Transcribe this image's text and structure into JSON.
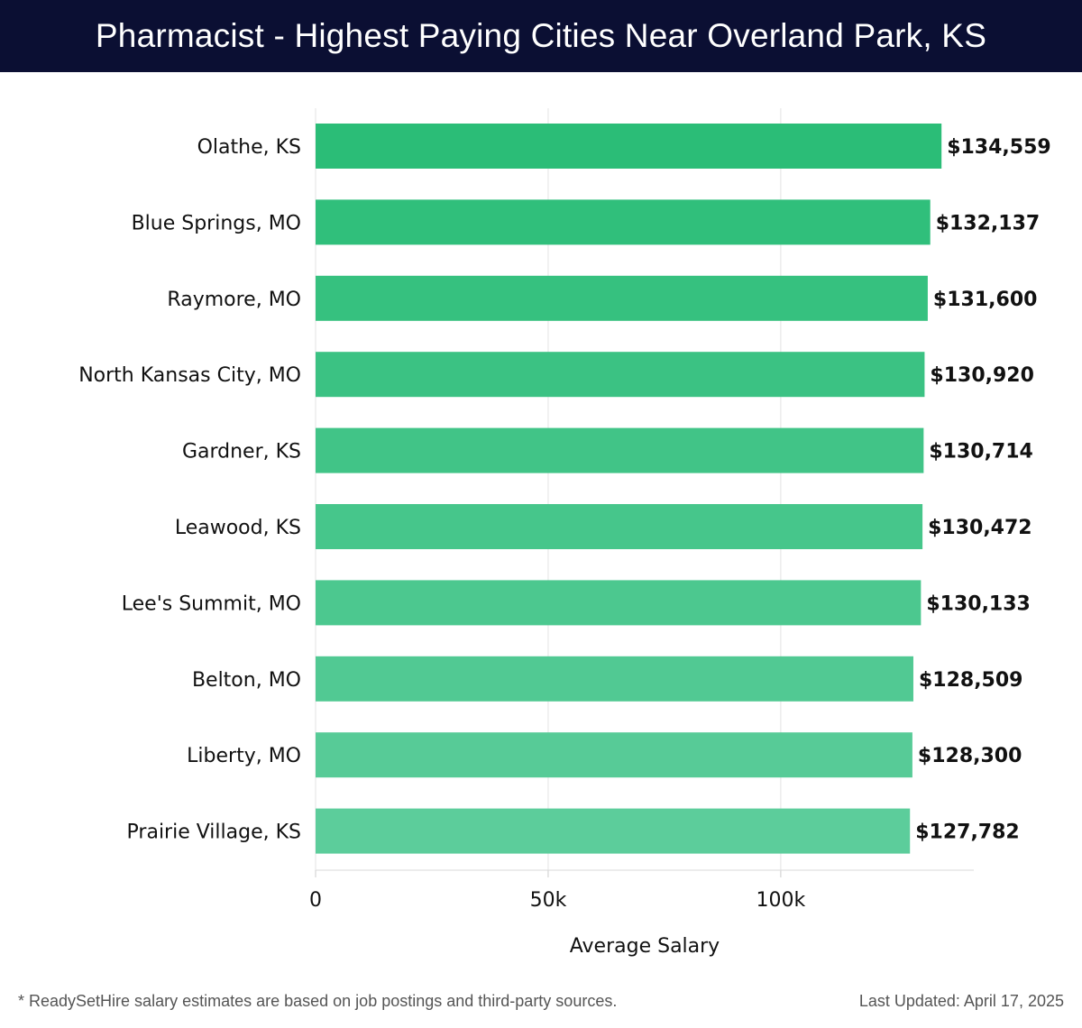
{
  "header": {
    "title": "Pharmacist - Highest Paying Cities Near Overland Park, KS"
  },
  "chart_data": {
    "type": "bar",
    "orientation": "horizontal",
    "categories": [
      "Olathe, KS",
      "Blue Springs, MO",
      "Raymore, MO",
      "North Kansas City, MO",
      "Gardner, KS",
      "Leawood, KS",
      "Lee's Summit, MO",
      "Belton, MO",
      "Liberty, MO",
      "Prairie Village, KS"
    ],
    "values": [
      134559,
      132137,
      131600,
      130920,
      130714,
      130472,
      130133,
      128509,
      128300,
      127782
    ],
    "value_labels": [
      "$134,559",
      "$132,137",
      "$131,600",
      "$130,920",
      "$130,714",
      "$130,472",
      "$130,133",
      "$128,509",
      "$128,300",
      "$127,782"
    ],
    "xlabel": "Average Salary",
    "ylabel": "",
    "xticks": [
      0,
      50000,
      100000
    ],
    "xtick_labels": [
      "0",
      "50k",
      "100k"
    ],
    "xlim": [
      0,
      141500
    ],
    "grid": true,
    "colors": {
      "bar_top": "#2bbd77",
      "bar_bottom": "#5ccd9b",
      "grid": "#e3e3e3",
      "text": "#111111"
    }
  },
  "footer": {
    "note": "* ReadySetHire salary estimates are based on job postings and third-party sources.",
    "updated": "Last Updated: April 17, 2025"
  }
}
